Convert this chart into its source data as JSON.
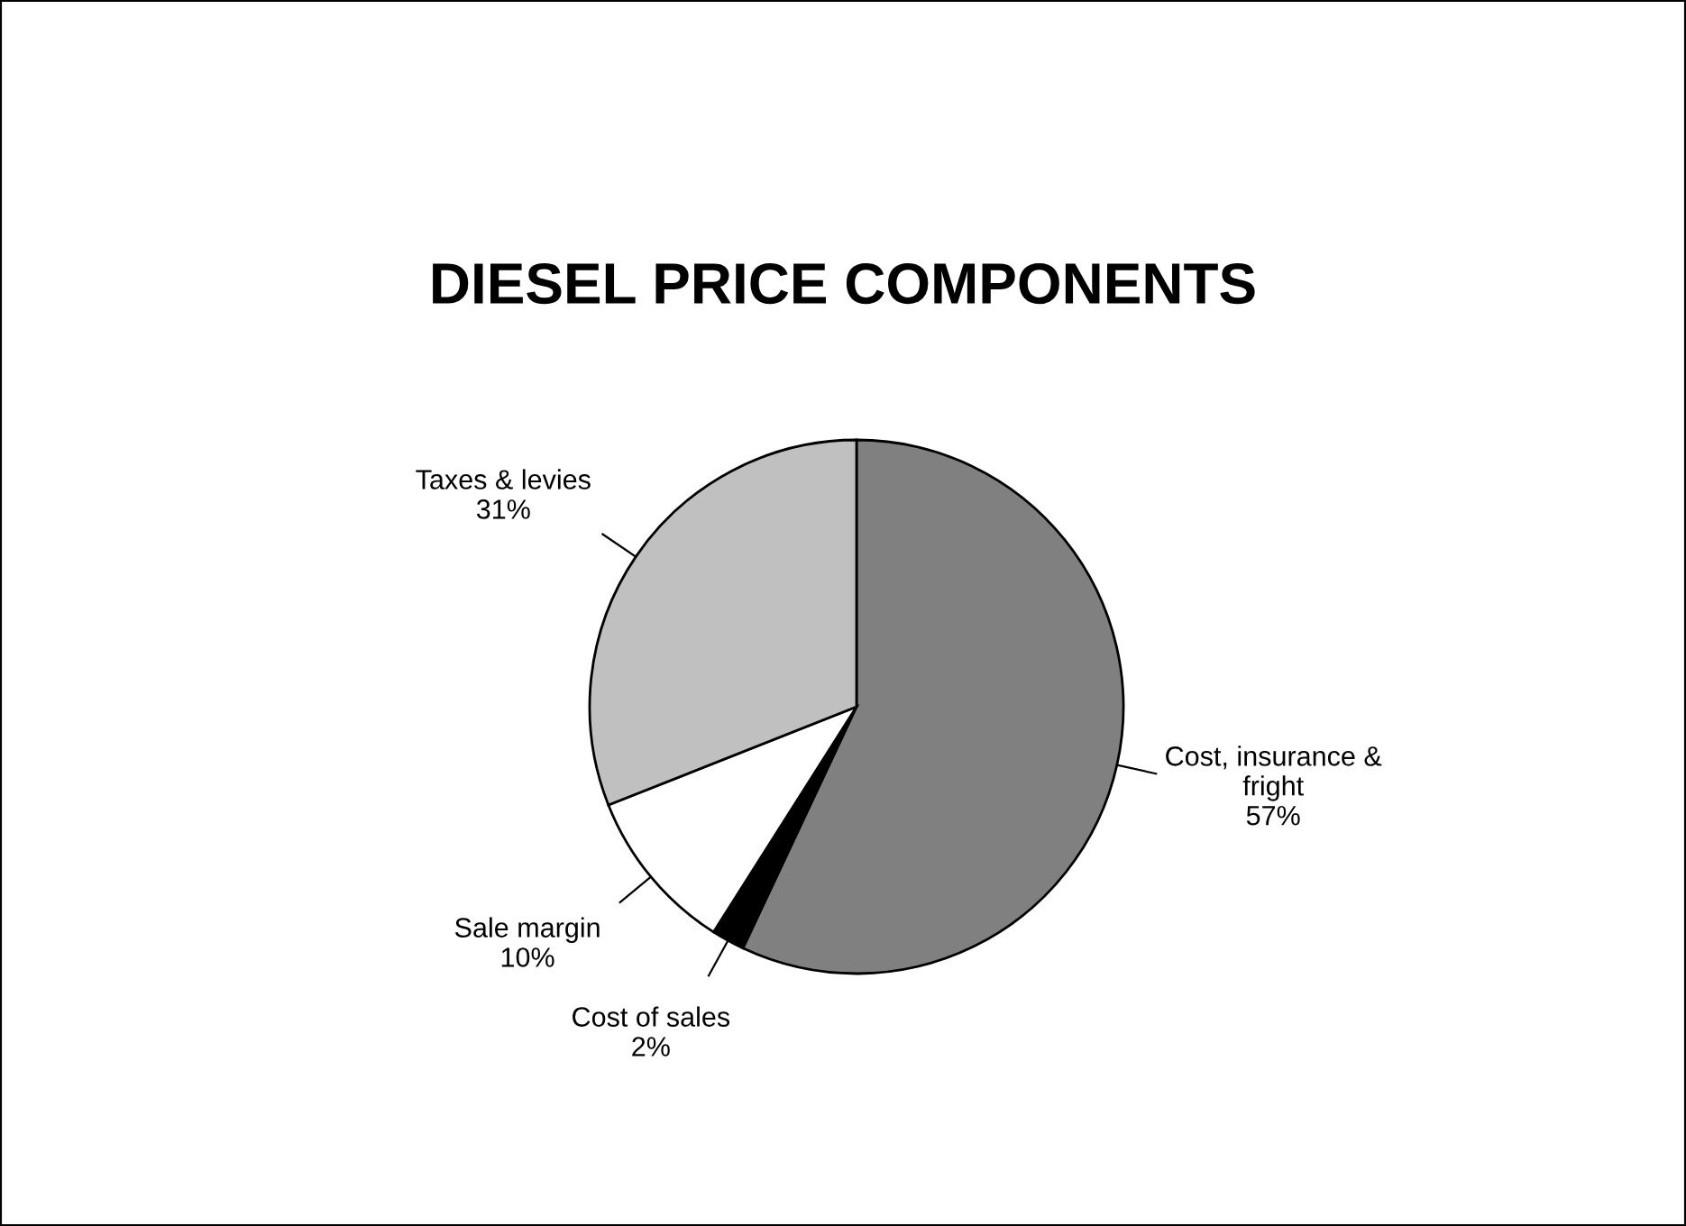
{
  "chart_data": {
    "type": "pie",
    "title": "DIESEL PRICE COMPONENTS",
    "categories": [
      "Cost, insurance &\nfright",
      "Cost of sales",
      "Sale margin",
      "Taxes & levies"
    ],
    "values": [
      57,
      2,
      10,
      31
    ],
    "colors": [
      "#808080",
      "#000000",
      "#ffffff",
      "#c0c0c0"
    ],
    "value_labels": [
      "57%",
      "2%",
      "10%",
      "31%"
    ]
  }
}
